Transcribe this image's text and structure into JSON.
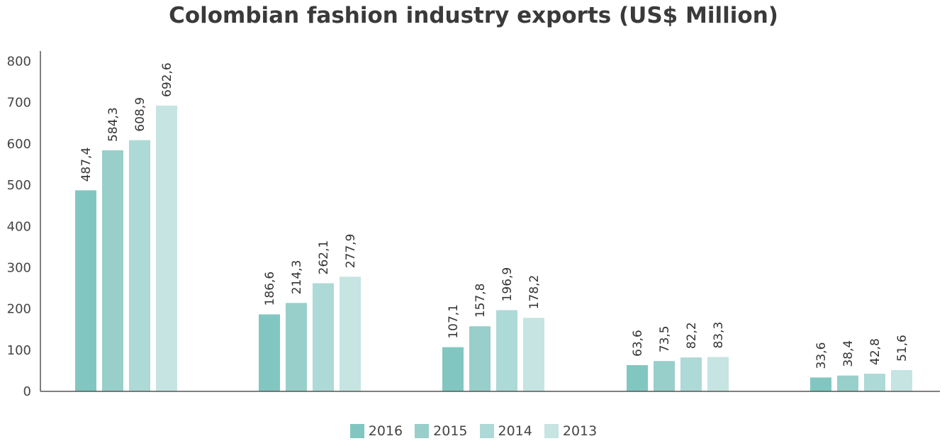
{
  "chart_data": {
    "type": "bar",
    "title": "Colombian fashion industry exports (US$ Million)",
    "categories": [
      "",
      "",
      "",
      "",
      ""
    ],
    "series": [
      {
        "name": "2016",
        "color": "#82c6c1",
        "values": [
          487.4,
          186.6,
          107.1,
          63.6,
          33.6
        ],
        "labels": [
          "487,4",
          "186,6",
          "107,1",
          "63,6",
          "33,6"
        ]
      },
      {
        "name": "2015",
        "color": "#98cfca",
        "values": [
          584.3,
          214.3,
          157.8,
          73.5,
          38.4
        ],
        "labels": [
          "584,3",
          "214,3",
          "157,8",
          "73,5",
          "38,4"
        ]
      },
      {
        "name": "2014",
        "color": "#add9d6",
        "values": [
          608.9,
          262.1,
          196.9,
          82.2,
          42.8
        ],
        "labels": [
          "608,9",
          "262,1",
          "196,9",
          "82,2",
          "42,8"
        ]
      },
      {
        "name": "2013",
        "color": "#c5e4e2",
        "values": [
          692.6,
          277.9,
          178.2,
          83.3,
          51.6
        ],
        "labels": [
          "692,6",
          "277,9",
          "178,2",
          "83,3",
          "51,6"
        ]
      }
    ],
    "ylim": [
      0,
      800
    ],
    "yticks": [
      0,
      100,
      200,
      300,
      400,
      500,
      600,
      700,
      800
    ],
    "grid": false,
    "legend": "bottom-center"
  }
}
